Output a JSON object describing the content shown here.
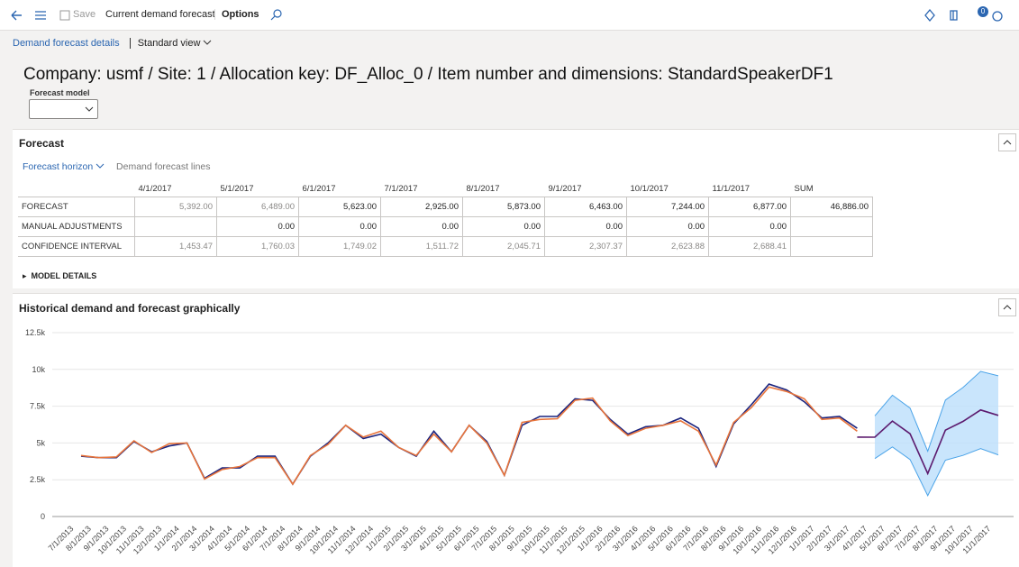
{
  "toolbar": {
    "save": "Save",
    "title": "Current demand forecast",
    "options": "Options",
    "badge": "0"
  },
  "breadcrumb": {
    "page": "Demand forecast details",
    "view": "Standard view"
  },
  "heading": "Company: usmf / Site: 1 / Allocation key: DF_Alloc_0 / Item number and dimensions: StandardSpeakerDF1",
  "forecast_model_label": "Forecast model",
  "forecast": {
    "title": "Forecast",
    "tabs": [
      "Forecast horizon",
      "Demand forecast lines"
    ],
    "table": {
      "columns": [
        "4/1/2017",
        "5/1/2017",
        "6/1/2017",
        "7/1/2017",
        "8/1/2017",
        "9/1/2017",
        "10/1/2017",
        "11/1/2017",
        "SUM"
      ],
      "rows": [
        {
          "label": "FORECAST",
          "cells": [
            "5,392.00",
            "6,489.00",
            "5,623.00",
            "2,925.00",
            "5,873.00",
            "6,463.00",
            "7,244.00",
            "6,877.00",
            "46,886.00"
          ]
        },
        {
          "label": "MANUAL ADJUSTMENTS",
          "cells": [
            null,
            "0.00",
            "0.00",
            "0.00",
            "0.00",
            "0.00",
            "0.00",
            "0.00",
            null
          ]
        },
        {
          "label": "CONFIDENCE INTERVAL",
          "cells": [
            "1,453.47",
            "1,760.03",
            "1,749.02",
            "1,511.72",
            "2,045.71",
            "2,307.37",
            "2,623.88",
            "2,688.41",
            null
          ]
        }
      ]
    },
    "model_details": "MODEL DETAILS"
  },
  "chart_data": {
    "type": "line",
    "title": "Historical demand and forecast graphically",
    "categories": [
      "7/1/2013",
      "8/1/2013",
      "9/1/2013",
      "10/1/2013",
      "11/1/2013",
      "12/1/2013",
      "1/1/2014",
      "2/1/2014",
      "3/1/2014",
      "4/1/2014",
      "5/1/2014",
      "6/1/2014",
      "7/1/2014",
      "8/1/2014",
      "9/1/2014",
      "10/1/2014",
      "11/1/2014",
      "12/1/2014",
      "1/1/2015",
      "2/1/2015",
      "3/1/2015",
      "4/1/2015",
      "5/1/2015",
      "6/1/2015",
      "7/1/2015",
      "8/1/2015",
      "9/1/2015",
      "10/1/2015",
      "11/1/2015",
      "12/1/2015",
      "1/1/2016",
      "2/1/2016",
      "3/1/2016",
      "4/1/2016",
      "5/1/2016",
      "6/1/2016",
      "7/1/2016",
      "8/1/2016",
      "9/1/2016",
      "10/1/2016",
      "11/1/2016",
      "12/1/2016",
      "1/1/2017",
      "2/1/2017",
      "3/1/2017",
      "4/1/2017",
      "5/1/2017",
      "6/1/2017",
      "7/1/2017",
      "8/1/2017",
      "9/1/2017",
      "10/1/2017",
      "11/1/2017"
    ],
    "ylim": [
      0,
      12500
    ],
    "yticks": [
      0,
      {
        "value": 2500,
        "label": "2.5k"
      },
      {
        "value": 5000,
        "label": "5k"
      },
      {
        "value": 7500,
        "label": "7.5k"
      },
      {
        "value": 10000,
        "label": "10k"
      },
      {
        "value": 12500,
        "label": "12.5k"
      }
    ],
    "grid": true,
    "band": {
      "color": "#bfe0fb",
      "line_color": "#4aa3e8",
      "lower": [
        null,
        null,
        null,
        null,
        null,
        null,
        null,
        null,
        null,
        null,
        null,
        null,
        null,
        null,
        null,
        null,
        null,
        null,
        null,
        null,
        null,
        null,
        null,
        null,
        null,
        null,
        null,
        null,
        null,
        null,
        null,
        null,
        null,
        null,
        null,
        null,
        null,
        null,
        null,
        null,
        null,
        null,
        null,
        null,
        null,
        3939,
        4729,
        3874,
        1413,
        3827,
        4156,
        4620,
        4189
      ],
      "upper": [
        null,
        null,
        null,
        null,
        null,
        null,
        null,
        null,
        null,
        null,
        null,
        null,
        null,
        null,
        null,
        null,
        null,
        null,
        null,
        null,
        null,
        null,
        null,
        null,
        null,
        null,
        null,
        null,
        null,
        null,
        null,
        null,
        null,
        null,
        null,
        null,
        null,
        null,
        null,
        null,
        null,
        null,
        null,
        null,
        null,
        6845,
        8249,
        7372,
        4437,
        7919,
        8770,
        9868,
        9565
      ]
    },
    "series": [
      {
        "color": "#1a237e",
        "values": [
          4100,
          4000,
          4000,
          5100,
          4400,
          4800,
          5000,
          2600,
          3300,
          3300,
          4100,
          4100,
          2200,
          4100,
          5000,
          6200,
          5300,
          5600,
          4700,
          4100,
          5800,
          4400,
          6200,
          5100,
          2800,
          6200,
          6800,
          6800,
          8000,
          7900,
          6600,
          5600,
          6100,
          6200,
          6700,
          6000,
          3400,
          6300,
          7600,
          9000,
          8600,
          7800,
          6700,
          6800,
          6000,
          null,
          null,
          null,
          null,
          null,
          null,
          null,
          null
        ]
      },
      {
        "color": "#e8743b",
        "values": [
          4150,
          4000,
          4050,
          5150,
          4350,
          4950,
          5000,
          2550,
          3200,
          3400,
          4000,
          4000,
          2200,
          4150,
          4900,
          6200,
          5400,
          5800,
          4700,
          4150,
          5600,
          4400,
          6200,
          5000,
          2800,
          6400,
          6600,
          6650,
          7900,
          8050,
          6500,
          5500,
          6000,
          6200,
          6500,
          5800,
          3500,
          6400,
          7400,
          8800,
          8500,
          8000,
          6600,
          6700,
          5800,
          null,
          null,
          null,
          null,
          null,
          null,
          null,
          null
        ]
      },
      {
        "color": "#5c1a6e",
        "values": [
          null,
          null,
          null,
          null,
          null,
          null,
          null,
          null,
          null,
          null,
          null,
          null,
          null,
          null,
          null,
          null,
          null,
          null,
          null,
          null,
          null,
          null,
          null,
          null,
          null,
          null,
          null,
          null,
          null,
          null,
          null,
          null,
          null,
          null,
          null,
          null,
          null,
          null,
          null,
          null,
          null,
          null,
          null,
          null,
          5400,
          5392,
          6489,
          5623,
          2925,
          5873,
          6463,
          7244,
          6877
        ]
      }
    ]
  }
}
